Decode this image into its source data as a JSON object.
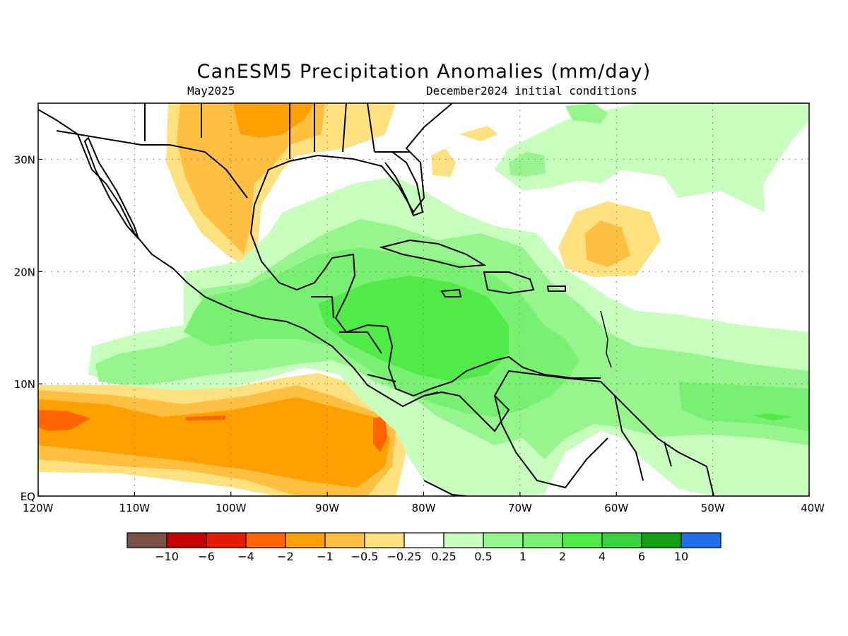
{
  "title": "CanESM5 Precipitation Anomalies (mm/day)",
  "subtitle_left": "May2025",
  "subtitle_right": "December2024 initial conditions",
  "map": {
    "lon_range": [
      -120,
      -40
    ],
    "lat_range": [
      0,
      35
    ],
    "lon_ticks": [
      {
        "value": -120,
        "label": "120W"
      },
      {
        "value": -110,
        "label": "110W"
      },
      {
        "value": -100,
        "label": "100W"
      },
      {
        "value": -90,
        "label": "90W"
      },
      {
        "value": -80,
        "label": "80W"
      },
      {
        "value": -70,
        "label": "70W"
      },
      {
        "value": -60,
        "label": "60W"
      },
      {
        "value": -50,
        "label": "50W"
      },
      {
        "value": -40,
        "label": "40W"
      }
    ],
    "lat_ticks": [
      {
        "value": 0,
        "label": "EQ"
      },
      {
        "value": 10,
        "label": "10N"
      },
      {
        "value": 20,
        "label": "20N"
      },
      {
        "value": 30,
        "label": "30N"
      }
    ],
    "gridlines": true
  },
  "colorbar": {
    "colors": [
      "#7a5146",
      "#c80000",
      "#e41b00",
      "#ff6400",
      "#ffa000",
      "#ffbf40",
      "#ffe27f",
      "#ffffff",
      "#c8ffbe",
      "#96f58c",
      "#78f072",
      "#50eb46",
      "#37d23c",
      "#14a014",
      "#1e6eeb"
    ],
    "labels": [
      "−10",
      "−6",
      "−4",
      "−2",
      "−1",
      "−0.5",
      "−0.25",
      "0.25",
      "0.5",
      "1",
      "2",
      "4",
      "6",
      "10"
    ]
  }
}
